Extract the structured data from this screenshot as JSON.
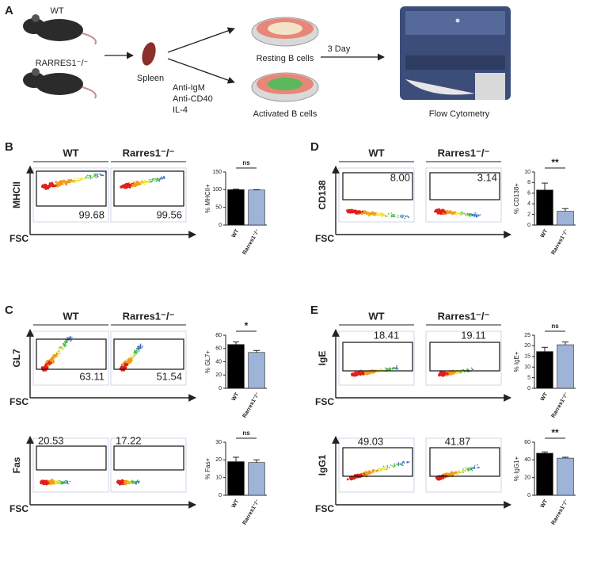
{
  "schematic": {
    "letter": "A",
    "wt": "WT",
    "ko": "RARRES1⁻/⁻",
    "spleen": "Spleen",
    "stimuli": [
      "Anti-IgM",
      "Anti-CD40",
      "IL-4"
    ],
    "resting": "Resting B cells",
    "activated": "Activated B cells",
    "duration": "3 Day",
    "instrument": "Flow Cytometry"
  },
  "flow_panels": [
    {
      "letter": "B",
      "groups": [
        "WT",
        "Rarres1⁻/⁻"
      ],
      "y_label": "MHCII",
      "x_label": "FSC",
      "gates": [
        "99.68",
        "99.56"
      ]
    },
    {
      "letter": "C",
      "groups": [
        "WT",
        "Rarres1⁻/⁻"
      ],
      "y_label": "GL7",
      "x_label": "FSC",
      "gates": [
        "63.11",
        "51.54"
      ]
    },
    {
      "y_label": "Fas",
      "x_label": "FSC",
      "gates": [
        "20.53",
        "17.22"
      ]
    },
    {
      "letter": "D",
      "groups": [
        "WT",
        "Rarres1⁻/⁻"
      ],
      "y_label": "CD138",
      "x_label": "FSC",
      "gates": [
        "8.00",
        "3.14"
      ]
    },
    {
      "letter": "E",
      "groups": [
        "WT",
        "Rarres1⁻/⁻"
      ],
      "y_label": "IgE",
      "x_label": "FSC",
      "gates": [
        "18.41",
        "19.11"
      ]
    },
    {
      "y_label": "IgG1",
      "x_label": "FSC",
      "gates": [
        "49.03",
        "41.87"
      ]
    }
  ],
  "chart_data": [
    {
      "type": "bar",
      "y_label": "% MHCII+",
      "categories": [
        "WT",
        "Rarres1⁻/⁻"
      ],
      "values": [
        100,
        99
      ],
      "errors": [
        1.5,
        1
      ],
      "colors": [
        "#000000",
        "#9db4d8"
      ],
      "ylim": [
        0,
        150
      ],
      "yticks": [
        0,
        50,
        100,
        150
      ],
      "annotation": "ns"
    },
    {
      "type": "bar",
      "y_label": "% GL7+",
      "categories": [
        "WT",
        "Rarres1⁻/⁻"
      ],
      "values": [
        66,
        54
      ],
      "errors": [
        4,
        3
      ],
      "colors": [
        "#000000",
        "#9db4d8"
      ],
      "ylim": [
        0,
        80
      ],
      "yticks": [
        0,
        20,
        40,
        60,
        80
      ],
      "annotation": "*"
    },
    {
      "type": "bar",
      "y_label": "% Fas+",
      "categories": [
        "WT",
        "Rarres1⁻/⁻"
      ],
      "values": [
        19,
        18.5
      ],
      "errors": [
        2.5,
        1.5
      ],
      "colors": [
        "#000000",
        "#9db4d8"
      ],
      "ylim": [
        0,
        30
      ],
      "yticks": [
        0,
        10,
        20,
        30
      ],
      "annotation": "ns"
    },
    {
      "type": "bar",
      "y_label": "% CD138+",
      "categories": [
        "WT",
        "Rarres1⁻/⁻"
      ],
      "values": [
        6.6,
        2.6
      ],
      "errors": [
        1.3,
        0.5
      ],
      "colors": [
        "#000000",
        "#9db4d8"
      ],
      "ylim": [
        0,
        10
      ],
      "yticks": [
        0,
        2,
        4,
        6,
        8,
        10
      ],
      "annotation": "**"
    },
    {
      "type": "bar",
      "y_label": "% IgE+",
      "categories": [
        "WT",
        "Rarres1⁻/⁻"
      ],
      "values": [
        17.3,
        20.5
      ],
      "errors": [
        2,
        1.3
      ],
      "colors": [
        "#000000",
        "#9db4d8"
      ],
      "ylim": [
        0,
        25
      ],
      "yticks": [
        0,
        5,
        10,
        15,
        20,
        25
      ],
      "annotation": "ns"
    },
    {
      "type": "bar",
      "y_label": "% IgG1+",
      "categories": [
        "WT",
        "Rarres1⁻/⁻"
      ],
      "values": [
        47.5,
        42
      ],
      "errors": [
        1.5,
        1
      ],
      "colors": [
        "#000000",
        "#9db4d8"
      ],
      "ylim": [
        0,
        60
      ],
      "yticks": [
        0,
        20,
        40,
        60
      ],
      "annotation": "**"
    }
  ]
}
